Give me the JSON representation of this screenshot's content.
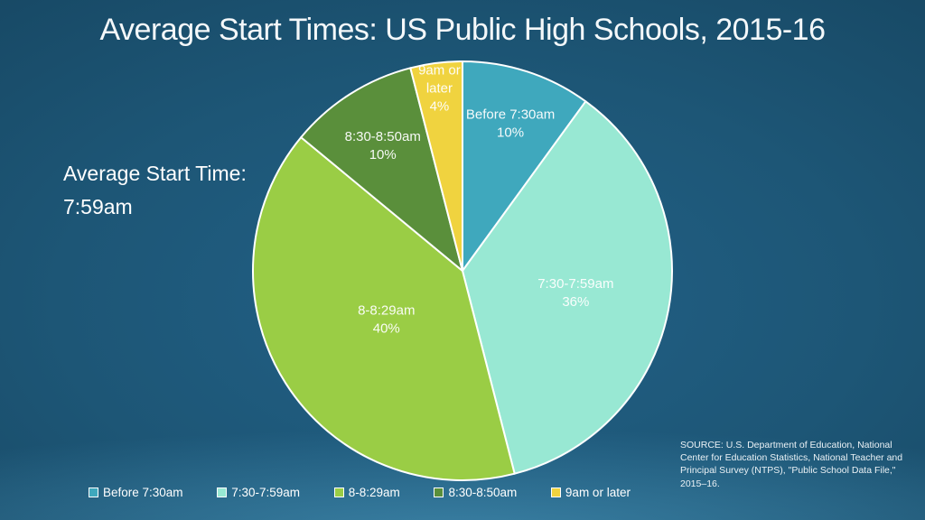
{
  "slide": {
    "title": "Average Start Times: US Public High Schools, 2015-16",
    "annotation": {
      "line1": "Average Start Time:",
      "line2": "7:59am"
    },
    "source": "SOURCE: U.S. Department of Education, National Center for Education Statistics, National Teacher and Principal Survey (NTPS), \"Public School Data File,\" 2015–16."
  },
  "chart_data": {
    "type": "pie",
    "title": "Average Start Times: US Public High Schools, 2015-16",
    "start_angle_deg": 0,
    "direction": "clockwise",
    "center": [
      512,
      300
    ],
    "radius": 232,
    "stroke_color": "#ffffff",
    "label_color": "#ffffff",
    "legend_position": "bottom",
    "slices": [
      {
        "label": "Before 7:30am",
        "value": 10,
        "pct_text": "10%",
        "color": "#3fa8bd",
        "label_lines": [
          "Before 7:30am",
          "10%"
        ],
        "label_radius_fraction": 0.74
      },
      {
        "label": "7:30-7:59am",
        "value": 36,
        "pct_text": "36%",
        "color": "#98e8d3",
        "label_lines": [
          "7:30-7:59am",
          "36%"
        ],
        "label_radius_fraction": 0.55
      },
      {
        "label": "8-8:29am",
        "value": 40,
        "pct_text": "40%",
        "color": "#9acd45",
        "label_lines": [
          "8-8:29am",
          "40%"
        ],
        "label_radius_fraction": 0.43
      },
      {
        "label": "8:30-8:50am",
        "value": 10,
        "pct_text": "10%",
        "color": "#5a8f3b",
        "label_lines": [
          "8:30-8:50am",
          "10%"
        ],
        "label_radius_fraction": 0.71
      },
      {
        "label": "9am or later",
        "value": 4,
        "pct_text": "4%",
        "color": "#f0d33f",
        "label_lines": [
          "9am or",
          "later",
          "4%"
        ],
        "label_radius_fraction": 0.88
      }
    ]
  }
}
